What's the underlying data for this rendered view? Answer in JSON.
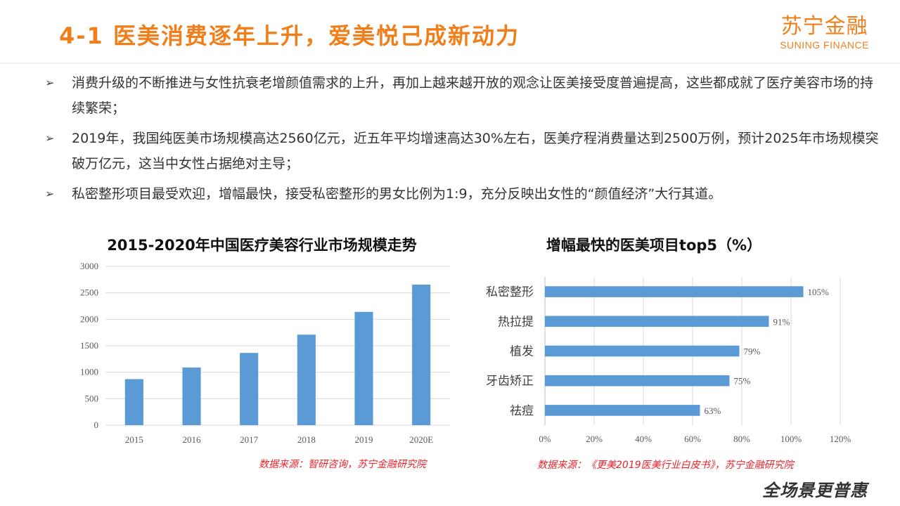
{
  "header": {
    "title": "4-1 医美消费逐年上升，爱美悦己成新动力",
    "logo_cn": "苏宁金融",
    "logo_en": "SUNING FINANCE"
  },
  "bullets": [
    "消费升级的不断推进与女性抗衰老增颜值需求的上升，再加上越来越开放的观念让医美接受度普遍提高，这些都成就了医疗美容市场的持续繁荣；",
    "2019年，我国纯医美市场规模高达2560亿元，近五年平均增速高达30%左右，医美疗程消费量达到2500万例，预计2025年市场规模突破万亿元，这当中女性占据绝对主导；",
    "私密整形项目最受欢迎，增幅最快，接受私密整形的男女比例为1:9，充分反映出女性的“颜值经济”大行其道。"
  ],
  "bullet_icon": "arrow-right-icon",
  "chart_data": [
    {
      "type": "bar",
      "title": "2015-2020年中国医疗美容行业市场规模走势",
      "categories": [
        "2015",
        "2016",
        "2017",
        "2018",
        "2019",
        "2020E"
      ],
      "values": [
        870,
        1090,
        1365,
        1710,
        2140,
        2655
      ],
      "ylim": [
        0,
        3000
      ],
      "yticks": [
        "0",
        "500",
        "1000",
        "1500",
        "2000",
        "2500",
        "3000"
      ],
      "grid": true,
      "color": "#5b9bd5",
      "source": "数据来源：智研咨询，苏宁金融研究院"
    },
    {
      "type": "bar",
      "orientation": "horizontal",
      "title": "增幅最快的医美项目top5（%）",
      "categories": [
        "私密整形",
        "热拉提",
        "植发",
        "牙齿矫正",
        "祛痘"
      ],
      "values": [
        105,
        91,
        79,
        75,
        63
      ],
      "data_labels": [
        "105%",
        "91%",
        "79%",
        "75%",
        "63%"
      ],
      "xlim": [
        0,
        120
      ],
      "xticks": [
        "0%",
        "20%",
        "40%",
        "60%",
        "80%",
        "100%",
        "120%"
      ],
      "grid": true,
      "color": "#5b9bd5",
      "source": "数据来源：《更美2019医美行业白皮书》，苏宁金融研究院"
    }
  ],
  "footer": {
    "slogan": "全场景更普惠"
  },
  "colors": {
    "accent": "#f07f1b",
    "bar": "#5b9bd5",
    "source": "#e8232b"
  }
}
